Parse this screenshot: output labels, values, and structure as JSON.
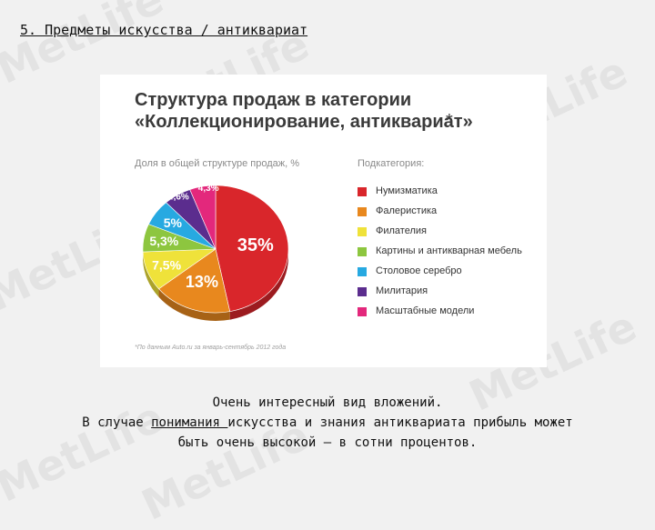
{
  "slide": {
    "title": "5. Предметы искусства / антиквариат",
    "caption": {
      "line1": "Очень интересный вид вложений.",
      "line2_before": "В случае ",
      "line2_link": "понимания ",
      "line2_after": "искусства и знания антиквариата прибыль может",
      "line3": "быть очень высокой — в сотни процентов."
    },
    "watermark": "MetLife"
  },
  "chart_data": {
    "type": "pie",
    "title": "Структура продаж в категории «Коллекционирование, антиквариат»",
    "title_line1": "Структура продаж в категории",
    "title_line2": "«Коллекционирование, антиквариат»",
    "asterisk": "*",
    "value_label": "Доля в общей структуре продаж, %",
    "legend_title": "Подкатегория:",
    "footnote": "*По данным Auto.ru за январь-сентябрь 2012 года",
    "legend_placement": "right",
    "series": [
      {
        "name": "Нумизматика",
        "value": 35,
        "label": "35%",
        "color": "#d9262b"
      },
      {
        "name": "Фалеристика",
        "value": 13,
        "label": "13%",
        "color": "#e8881e"
      },
      {
        "name": "Филателия",
        "value": 7.5,
        "label": "7,5%",
        "color": "#efe23a"
      },
      {
        "name": "Картины и антикварная мебель",
        "value": 5.3,
        "label": "5,3%",
        "color": "#8dc63f"
      },
      {
        "name": "Столовое серебро",
        "value": 5,
        "label": "5%",
        "color": "#27a9e1"
      },
      {
        "name": "Милитария",
        "value": 4.6,
        "label": "4,6%",
        "color": "#5b2d8e"
      },
      {
        "name": "Масштабные модели",
        "value": 4.3,
        "label": "4,3%",
        "color": "#e3287c"
      }
    ]
  }
}
